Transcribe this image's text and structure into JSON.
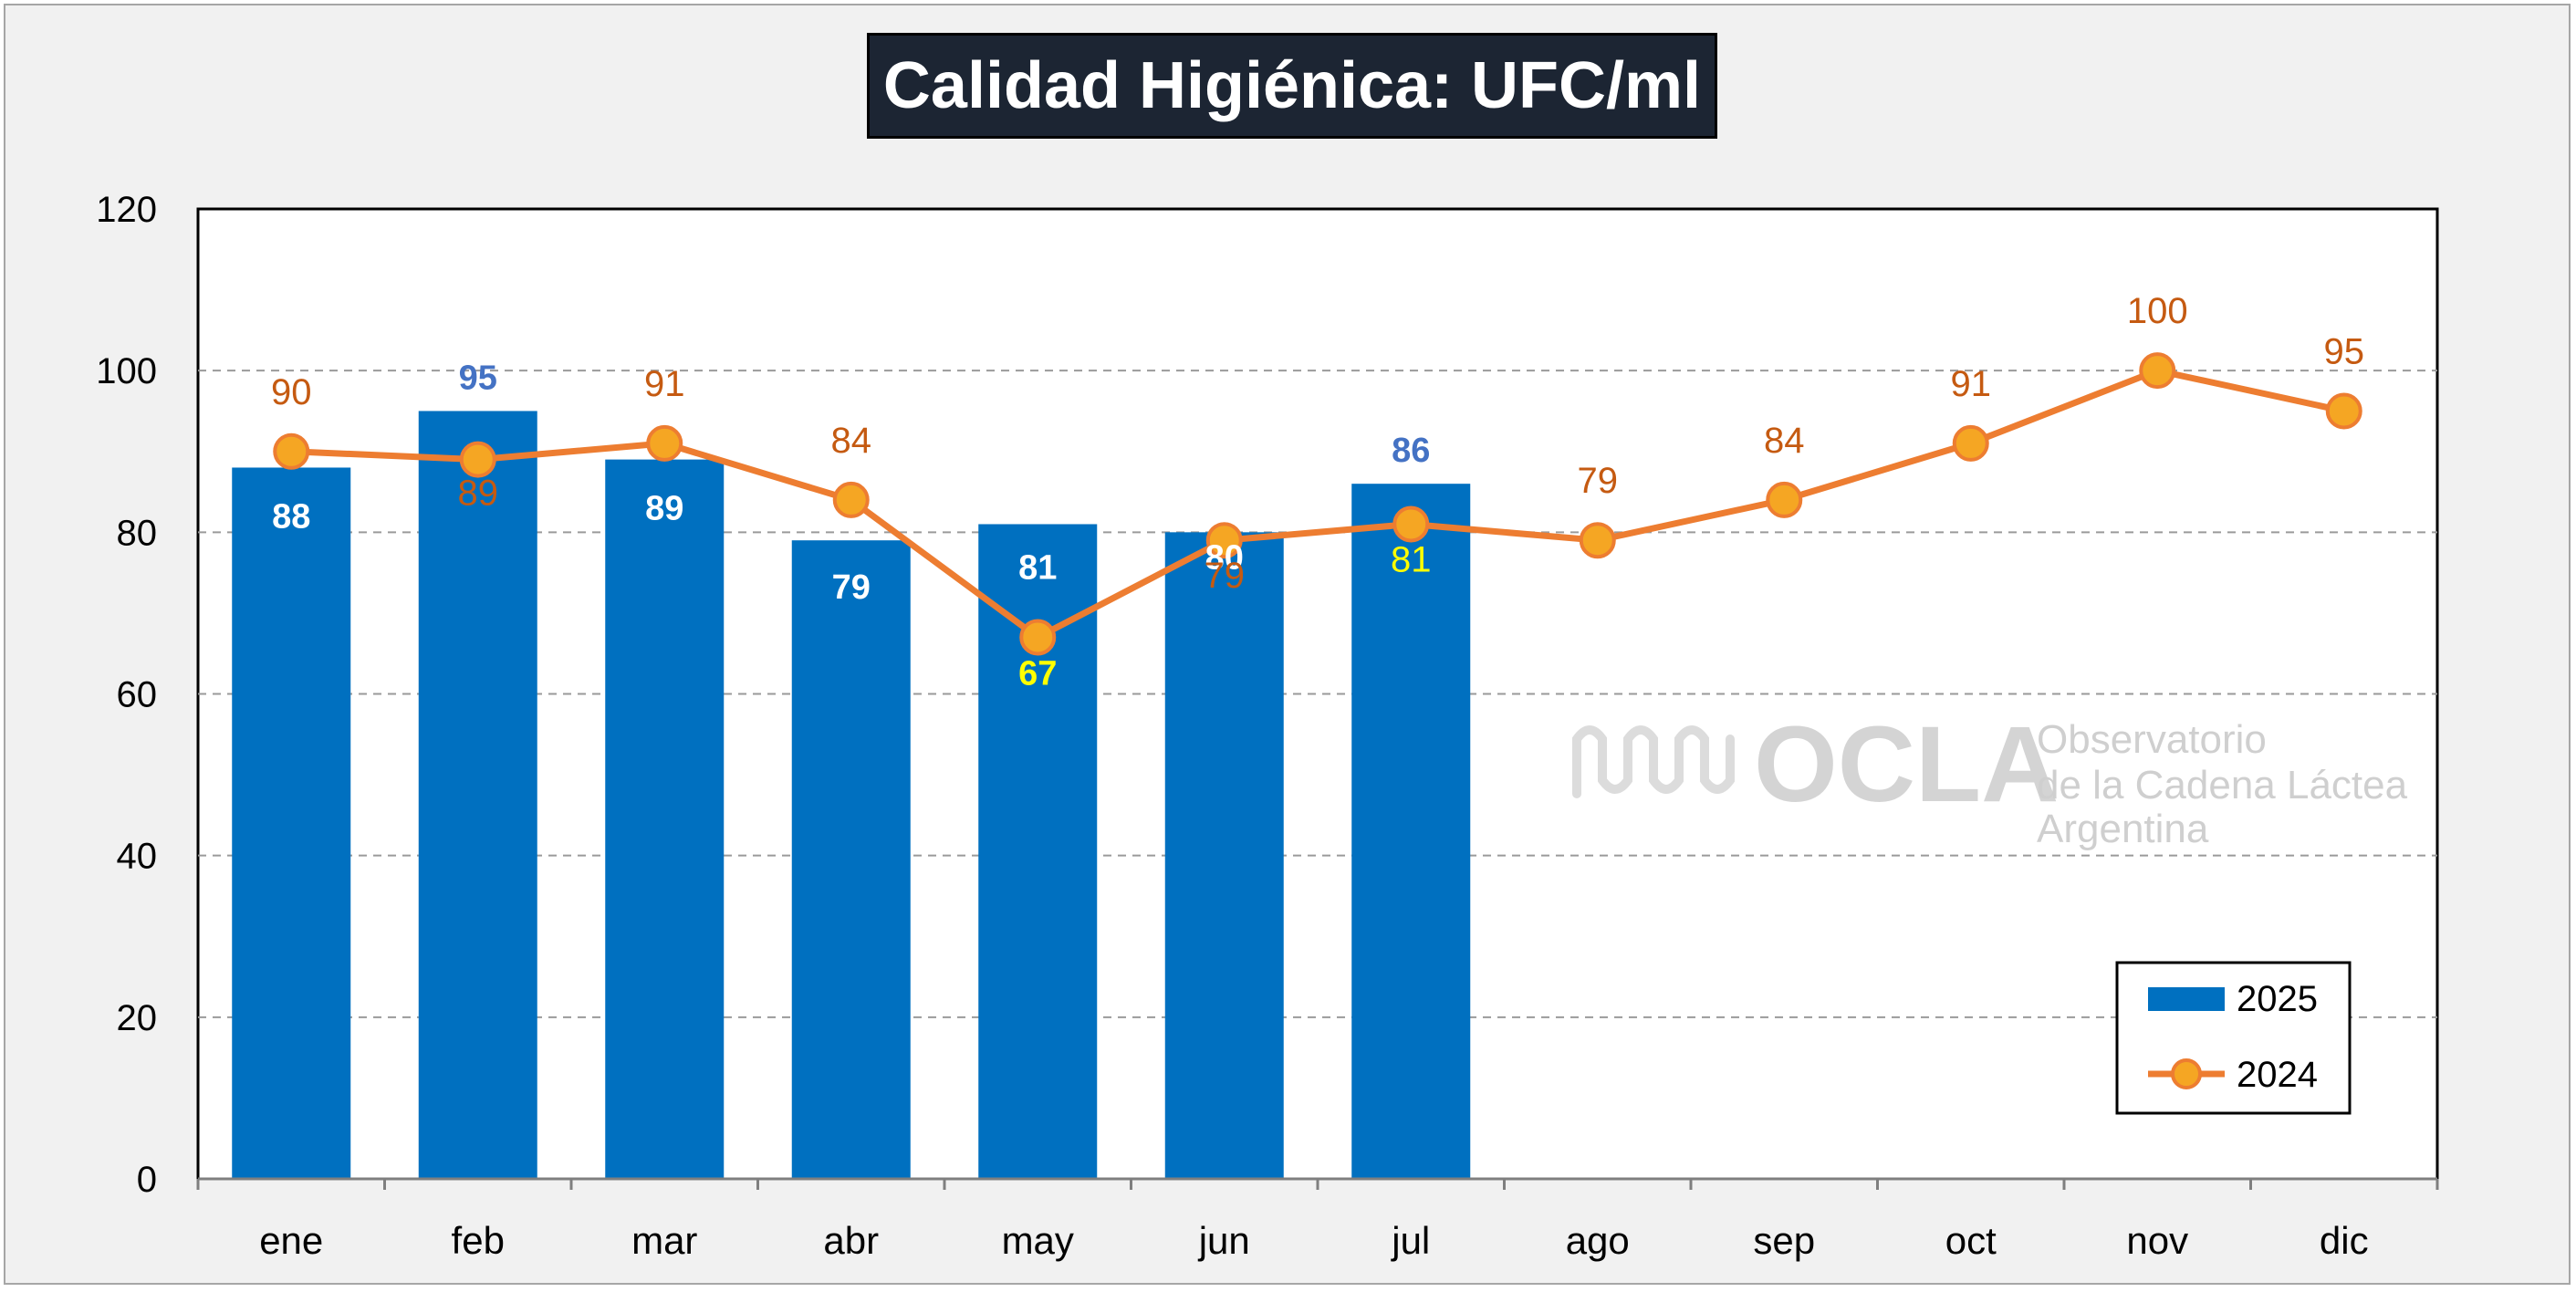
{
  "chart_data": {
    "type": "bar",
    "title": "Calidad Higiénica: UFC/ml",
    "xlabel": "",
    "ylabel": "",
    "ylim": [
      0,
      120
    ],
    "yticks": [
      0,
      20,
      40,
      60,
      80,
      100,
      120
    ],
    "grid": "horizontal-dashed",
    "legend_position": "bottom-right",
    "categories": [
      "ene",
      "feb",
      "mar",
      "abr",
      "may",
      "jun",
      "jul",
      "ago",
      "sep",
      "oct",
      "nov",
      "dic"
    ],
    "series": [
      {
        "name": "2025",
        "type": "bar",
        "color": "#0070c0",
        "values": [
          88,
          95,
          89,
          79,
          81,
          80,
          86,
          null,
          null,
          null,
          null,
          null
        ]
      },
      {
        "name": "2024",
        "type": "line",
        "color": "#ed7d31",
        "values": [
          90,
          89,
          91,
          84,
          67,
          79,
          81,
          79,
          84,
          91,
          100,
          95
        ]
      }
    ]
  },
  "watermark": {
    "logo_text": "OCLA",
    "line1": "Observatorio",
    "line2": "de la Cadena Láctea",
    "line3": "Argentina"
  }
}
